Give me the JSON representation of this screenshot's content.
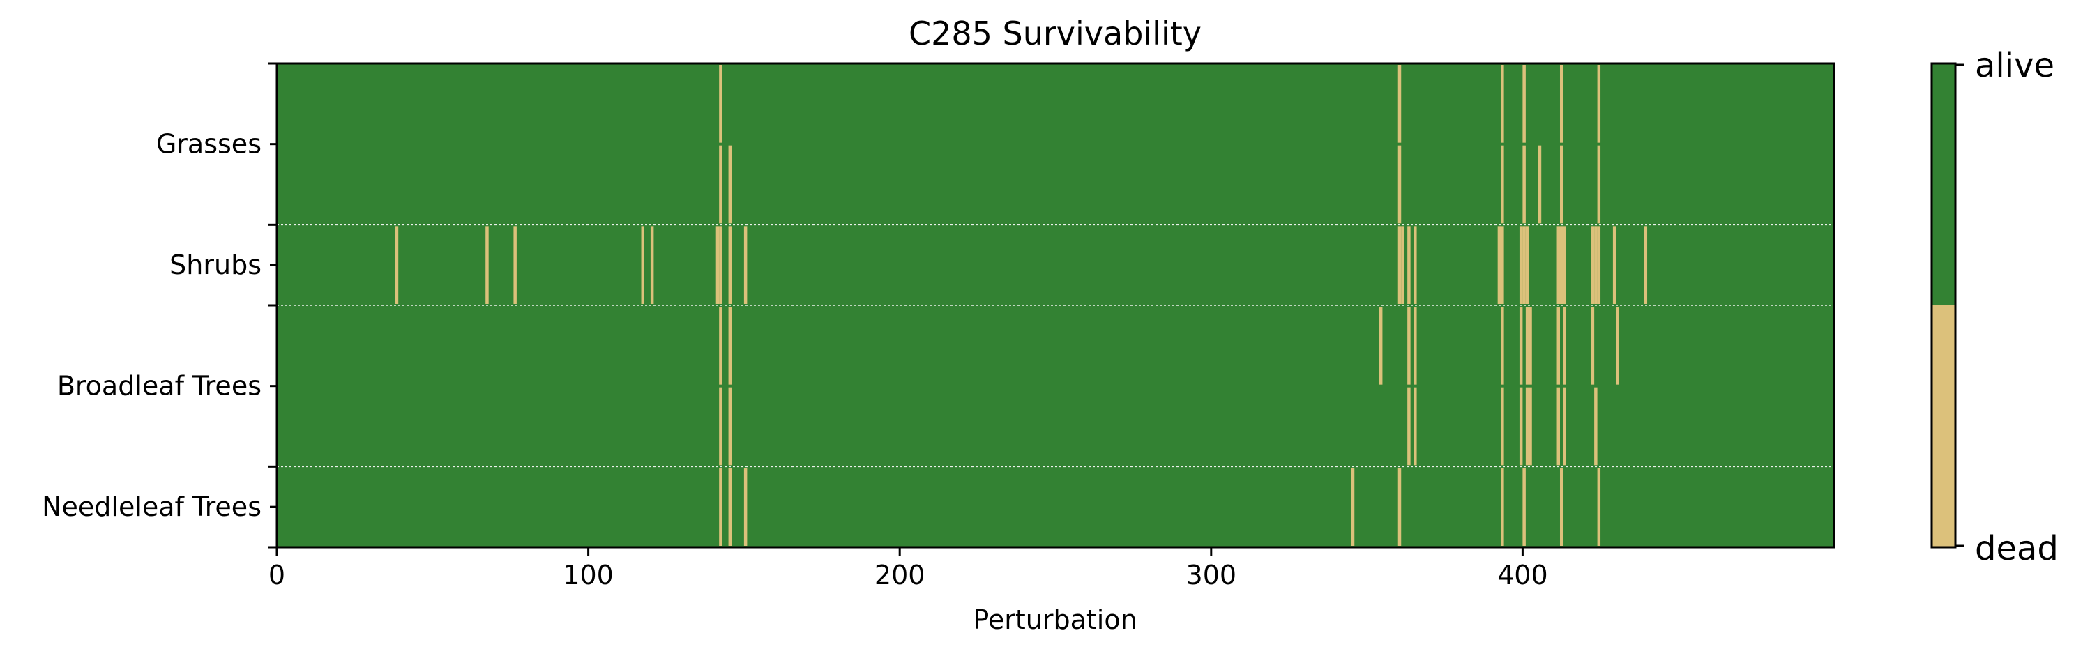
{
  "chart_data": {
    "type": "heatmap",
    "title": "C285 Survivability",
    "xlabel": "Perturbation",
    "ylabel": "",
    "xlim": [
      0,
      500
    ],
    "xticks": [
      0,
      100,
      200,
      300,
      400
    ],
    "colors": {
      "alive": "#338233",
      "dead": "#dcc17b"
    },
    "colorbar": {
      "labels": [
        "alive",
        "dead"
      ],
      "alive_fraction": 0.5,
      "dead_fraction": 0.5
    },
    "groups": [
      {
        "name": "Grasses",
        "rows": 2
      },
      {
        "name": "Shrubs",
        "rows": 1
      },
      {
        "name": "Broadleaf Trees",
        "rows": 2
      },
      {
        "name": "Needleleaf Trees",
        "rows": 1
      }
    ],
    "dead_cells": [
      {
        "row": 0,
        "x": [
          142,
          360,
          393,
          400,
          412,
          424
        ]
      },
      {
        "row": 1,
        "x": [
          142,
          145,
          360,
          393,
          400,
          405,
          412,
          424
        ]
      },
      {
        "row": 2,
        "x": [
          38,
          67,
          76,
          117,
          120,
          141,
          142,
          145,
          150,
          360,
          361,
          363,
          365,
          392,
          393,
          399,
          400,
          401,
          411,
          412,
          413,
          422,
          423,
          424,
          429,
          439
        ]
      },
      {
        "row": 3,
        "x": [
          142,
          145,
          354,
          363,
          365,
          393,
          399,
          401,
          402,
          411,
          413,
          422,
          430
        ]
      },
      {
        "row": 4,
        "x": [
          142,
          145,
          363,
          365,
          393,
          399,
          401,
          402,
          411,
          413,
          423
        ]
      },
      {
        "row": 5,
        "x": [
          142,
          145,
          150,
          345,
          360,
          393,
          400,
          412,
          424
        ]
      }
    ]
  }
}
